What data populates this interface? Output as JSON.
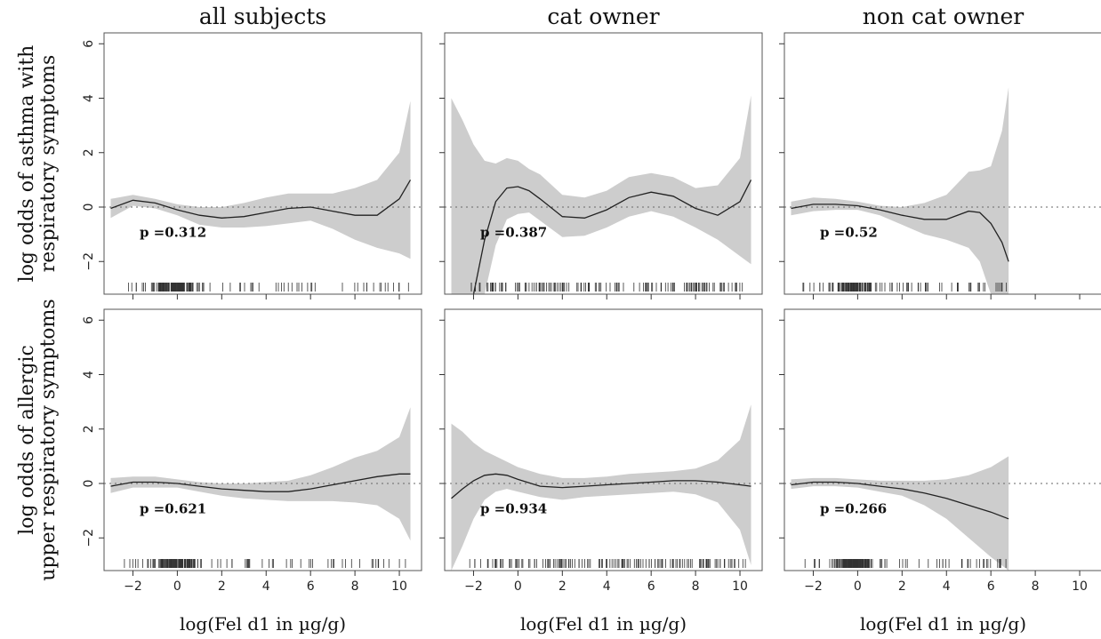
{
  "chart_data": {
    "type": "line",
    "layout": "2x3 grid",
    "columns": [
      "all subjects",
      "cat owner",
      "non cat owner"
    ],
    "row_ylabels": [
      [
        "log odds of asthma with",
        "respiratory symptoms"
      ],
      [
        "log odds of allergic",
        "upper respiratory symptoms"
      ]
    ],
    "xlabel": "log(Fel d1 in µg/g)",
    "xlim": [
      -3.3,
      11
    ],
    "ylim": [
      -3.2,
      6.4
    ],
    "xticks": [
      -2,
      0,
      2,
      4,
      6,
      8,
      10
    ],
    "xtick_labels": [
      "−2",
      "0",
      "2",
      "4",
      "6",
      "8",
      "10"
    ],
    "yticks": [
      -2,
      0,
      2,
      4,
      6
    ],
    "ytick_labels": [
      "−2",
      "0",
      "2",
      "4",
      "6"
    ],
    "reference_line": 0,
    "panels": [
      {
        "row": 0,
        "col": 0,
        "p_label": "p =0.312",
        "p_pos": [
          -1.7,
          -1.1
        ],
        "x": [
          -3.0,
          -2.0,
          -1.0,
          0.0,
          1.0,
          2.0,
          3.0,
          4.0,
          5.0,
          6.0,
          7.0,
          8.0,
          9.0,
          10.0,
          10.5
        ],
        "fit": [
          -0.05,
          0.25,
          0.15,
          -0.1,
          -0.3,
          -0.4,
          -0.35,
          -0.2,
          -0.05,
          0.0,
          -0.15,
          -0.3,
          -0.3,
          0.3,
          1.0
        ],
        "upper": [
          0.3,
          0.45,
          0.3,
          0.1,
          0.0,
          0.0,
          0.15,
          0.35,
          0.5,
          0.5,
          0.5,
          0.7,
          1.0,
          2.0,
          3.9
        ],
        "lower": [
          -0.4,
          0.05,
          -0.05,
          -0.3,
          -0.65,
          -0.75,
          -0.75,
          -0.7,
          -0.6,
          -0.5,
          -0.8,
          -1.2,
          -1.5,
          -1.7,
          -1.9
        ],
        "rug": {
          "range": [
            -2.5,
            10.5
          ],
          "dense": [
            -1.5,
            1.5
          ]
        }
      },
      {
        "row": 0,
        "col": 1,
        "p_label": "p =0.387",
        "p_pos": [
          -1.7,
          -1.1
        ],
        "x": [
          -2.0,
          -1.5,
          -1.0,
          -0.5,
          0.0,
          0.5,
          1.0,
          2.0,
          3.0,
          4.0,
          5.0,
          6.0,
          7.0,
          8.0,
          9.0,
          10.0,
          10.5
        ],
        "fit": [
          -3.2,
          -1.2,
          0.2,
          0.7,
          0.75,
          0.6,
          0.3,
          -0.35,
          -0.4,
          -0.1,
          0.35,
          0.55,
          0.4,
          -0.05,
          -0.3,
          0.2,
          1.0
        ],
        "upper": [
          2.3,
          1.7,
          1.6,
          1.8,
          1.7,
          1.4,
          1.2,
          0.45,
          0.35,
          0.6,
          1.1,
          1.25,
          1.1,
          0.7,
          0.8,
          1.8,
          4.1
        ],
        "lower": [
          -3.2,
          -3.2,
          -1.4,
          -0.45,
          -0.25,
          -0.2,
          -0.5,
          -1.1,
          -1.05,
          -0.75,
          -0.35,
          -0.15,
          -0.35,
          -0.75,
          -1.2,
          -1.8,
          -2.1
        ],
        "band_prefix": {
          "x": [
            -3.0,
            -2.5
          ],
          "upper": [
            4.0,
            3.2
          ]
        },
        "rug": {
          "range": [
            -2.3,
            10.3
          ],
          "dense": null
        }
      },
      {
        "row": 0,
        "col": 2,
        "p_label": "p =0.52",
        "p_pos": [
          -1.7,
          -1.1
        ],
        "x": [
          -3.0,
          -2.0,
          -1.0,
          0.0,
          1.0,
          2.0,
          3.0,
          4.0,
          5.0,
          5.5,
          6.0,
          6.5,
          6.8
        ],
        "fit": [
          -0.05,
          0.1,
          0.1,
          0.05,
          -0.1,
          -0.3,
          -0.45,
          -0.45,
          -0.15,
          -0.2,
          -0.6,
          -1.3,
          -2.0
        ],
        "upper": [
          0.2,
          0.35,
          0.3,
          0.2,
          0.05,
          0.0,
          0.15,
          0.45,
          1.3,
          1.35,
          1.5,
          2.8,
          4.4
        ],
        "lower": [
          -0.3,
          -0.15,
          -0.1,
          -0.1,
          -0.3,
          -0.65,
          -1.0,
          -1.2,
          -1.5,
          -2.0,
          -3.2,
          -3.2,
          -3.2
        ],
        "rug": {
          "range": [
            -2.5,
            6.7
          ],
          "dense": [
            -1.3,
            1.0
          ]
        }
      },
      {
        "row": 1,
        "col": 0,
        "p_label": "p =0.621",
        "p_pos": [
          -1.7,
          -1.1
        ],
        "x": [
          -3.0,
          -2.0,
          -1.0,
          0.0,
          1.0,
          2.0,
          3.0,
          4.0,
          5.0,
          6.0,
          7.0,
          8.0,
          9.0,
          10.0,
          10.5
        ],
        "fit": [
          -0.1,
          0.05,
          0.05,
          0.0,
          -0.1,
          -0.2,
          -0.25,
          -0.3,
          -0.3,
          -0.2,
          -0.05,
          0.1,
          0.25,
          0.35,
          0.35
        ],
        "upper": [
          0.2,
          0.25,
          0.25,
          0.15,
          0.05,
          0.0,
          0.0,
          0.05,
          0.1,
          0.3,
          0.6,
          0.95,
          1.2,
          1.7,
          2.8
        ],
        "lower": [
          -0.35,
          -0.15,
          -0.15,
          -0.15,
          -0.3,
          -0.45,
          -0.55,
          -0.6,
          -0.65,
          -0.65,
          -0.65,
          -0.7,
          -0.8,
          -1.3,
          -2.1
        ],
        "rug": {
          "range": [
            -2.5,
            10.5
          ],
          "dense": [
            -1.5,
            1.5
          ]
        }
      },
      {
        "row": 1,
        "col": 1,
        "p_label": "p =0.934",
        "p_pos": [
          -1.7,
          -1.1
        ],
        "x": [
          -3.0,
          -2.5,
          -2.0,
          -1.5,
          -1.0,
          -0.5,
          0.0,
          1.0,
          2.0,
          3.0,
          4.0,
          5.0,
          6.0,
          7.0,
          8.0,
          9.0,
          10.0,
          10.5
        ],
        "fit": [
          -0.55,
          -0.2,
          0.1,
          0.3,
          0.35,
          0.3,
          0.15,
          -0.1,
          -0.15,
          -0.1,
          -0.05,
          0.0,
          0.05,
          0.1,
          0.1,
          0.05,
          -0.05,
          -0.1
        ],
        "upper": [
          2.2,
          1.9,
          1.5,
          1.2,
          1.0,
          0.8,
          0.6,
          0.35,
          0.2,
          0.2,
          0.25,
          0.35,
          0.4,
          0.45,
          0.55,
          0.85,
          1.6,
          2.9
        ],
        "lower": [
          -3.2,
          -2.3,
          -1.3,
          -0.6,
          -0.3,
          -0.2,
          -0.3,
          -0.5,
          -0.6,
          -0.5,
          -0.45,
          -0.4,
          -0.35,
          -0.3,
          -0.4,
          -0.7,
          -1.7,
          -3.0
        ],
        "rug": {
          "range": [
            -2.3,
            10.3
          ],
          "dense": null
        }
      },
      {
        "row": 1,
        "col": 2,
        "p_label": "p =0.266",
        "p_pos": [
          -1.7,
          -1.1
        ],
        "x": [
          -3.0,
          -2.0,
          -1.0,
          0.0,
          1.0,
          2.0,
          3.0,
          4.0,
          5.0,
          6.0,
          6.8
        ],
        "fit": [
          -0.05,
          0.05,
          0.05,
          0.0,
          -0.1,
          -0.2,
          -0.35,
          -0.55,
          -0.8,
          -1.05,
          -1.3
        ],
        "upper": [
          0.15,
          0.2,
          0.2,
          0.15,
          0.1,
          0.1,
          0.1,
          0.15,
          0.3,
          0.6,
          1.0
        ],
        "lower": [
          -0.2,
          -0.1,
          -0.1,
          -0.15,
          -0.3,
          -0.45,
          -0.8,
          -1.3,
          -2.0,
          -2.7,
          -3.2
        ],
        "rug": {
          "range": [
            -2.5,
            6.7
          ],
          "dense": [
            -1.3,
            1.0
          ]
        }
      }
    ]
  }
}
